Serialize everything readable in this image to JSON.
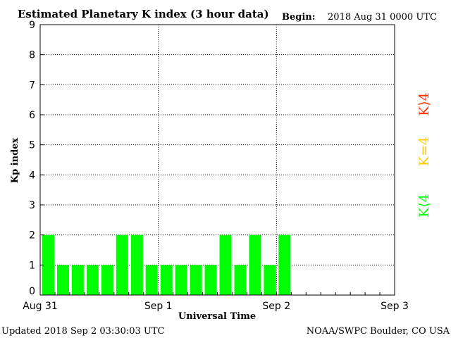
{
  "header": {
    "title": "Estimated Planetary K index (3 hour data)",
    "begin_label": "Begin:",
    "begin_value": "2018 Aug 31 0000 UTC"
  },
  "footer": {
    "updated": "Updated 2018 Sep  2 03:30:03 UTC",
    "source": "NOAA/SWPC Boulder, CO USA"
  },
  "legend": {
    "low": {
      "label": "K⟨4",
      "color": "#00ff00"
    },
    "mid": {
      "label": "K=4",
      "color": "#ffcc00"
    },
    "high": {
      "label": "K⟩4",
      "color": "#ff3300"
    }
  },
  "chart_data": {
    "type": "bar",
    "xlabel": "Universal Time",
    "ylabel": "Kp index",
    "ylim": [
      0,
      9
    ],
    "y_ticks": [
      "0",
      "1",
      "2",
      "3",
      "4",
      "5",
      "6",
      "7",
      "8",
      "9"
    ],
    "x_ticks": [
      "Aug 31",
      "Sep 1",
      "Sep 2",
      "Sep 3"
    ],
    "slots_total": 24,
    "bar_color": "#00ff00",
    "grid": "dotted",
    "values": [
      2,
      1,
      1,
      1,
      1,
      2,
      2,
      1,
      1,
      1,
      1,
      1,
      2,
      1,
      2,
      1,
      2
    ]
  }
}
